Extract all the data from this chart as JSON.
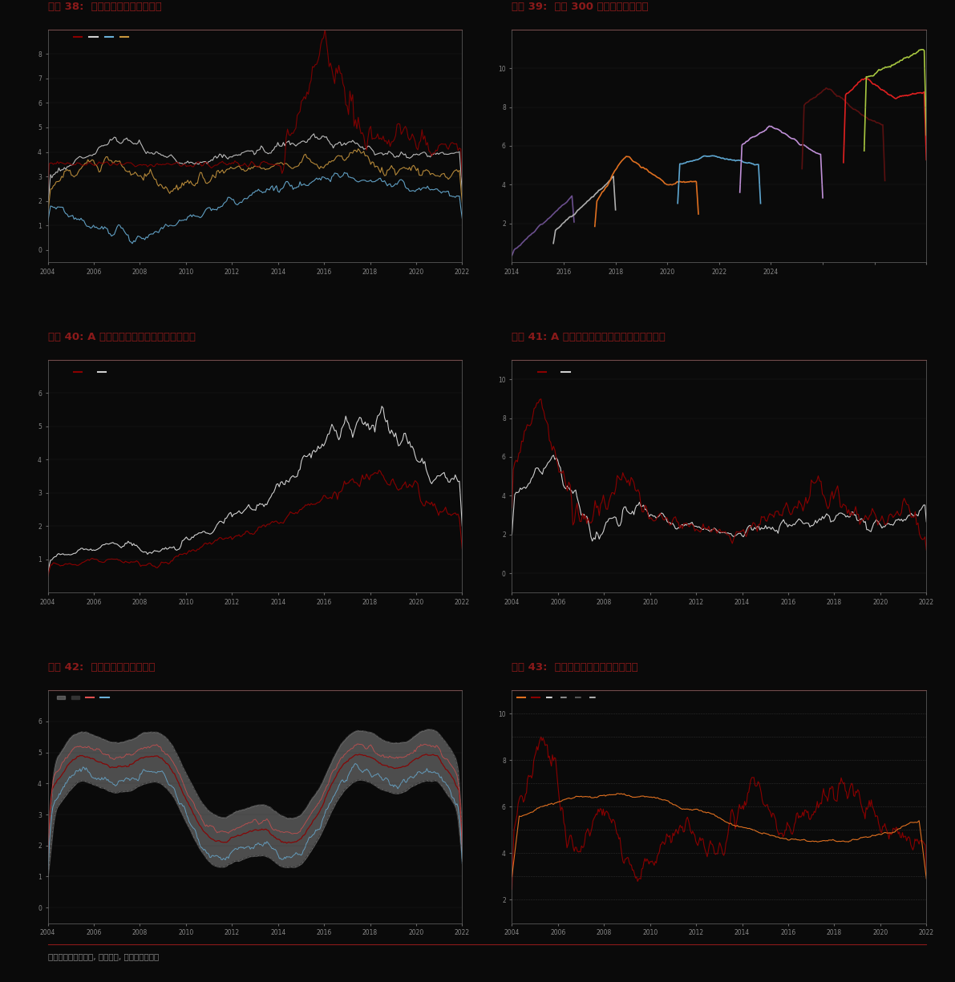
{
  "title38": "图表 38:  无风险利率与股息收益率",
  "title39": "图表 39:  沪深 300 指数盈利预期变化",
  "title40": "图表 40: A 股大小盘指数相对表现和相对估值",
  "title41": "图表 41: A 股价值成长指数相对表现和相对估值",
  "title42": "图表 42:  十年期国债到期收益率",
  "title43": "图表 43:  股票和债券的内在回报率对比",
  "footer": "资料来源：彭博资讯, 万得资讯, 中金公司研究部",
  "title_color": "#8B1A1A",
  "title_fontsize": 10,
  "bg_color": "#0a0a0a",
  "sep_color": "#8B1A1A",
  "axis_color": "#666666",
  "text_color": "#cccccc"
}
